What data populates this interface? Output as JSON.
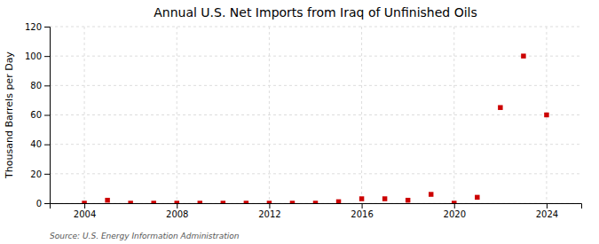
{
  "chart_data": {
    "type": "scatter",
    "title": "Annual U.S. Net Imports from Iraq of Unfinished Oils",
    "ylabel": "Thousand Barrels per Day",
    "source": "Source: U.S. Energy Information Administration",
    "x": [
      2004,
      2005,
      2006,
      2007,
      2008,
      2009,
      2010,
      2011,
      2012,
      2013,
      2014,
      2015,
      2016,
      2017,
      2018,
      2019,
      2020,
      2021,
      2022,
      2023,
      2024
    ],
    "values": [
      0,
      2,
      0,
      0,
      0,
      0,
      0,
      0,
      0,
      0,
      0,
      1,
      3,
      3,
      2,
      6,
      0,
      4,
      65,
      100,
      60
    ],
    "color": "#cc0000",
    "marker": "square",
    "xlim": [
      2002.5,
      2025.5
    ],
    "ylim": [
      0,
      120
    ],
    "xticks": [
      2004,
      2008,
      2012,
      2016,
      2020,
      2024
    ],
    "yticks": [
      0,
      20,
      40,
      60,
      80,
      100,
      120
    ],
    "grid": true
  }
}
